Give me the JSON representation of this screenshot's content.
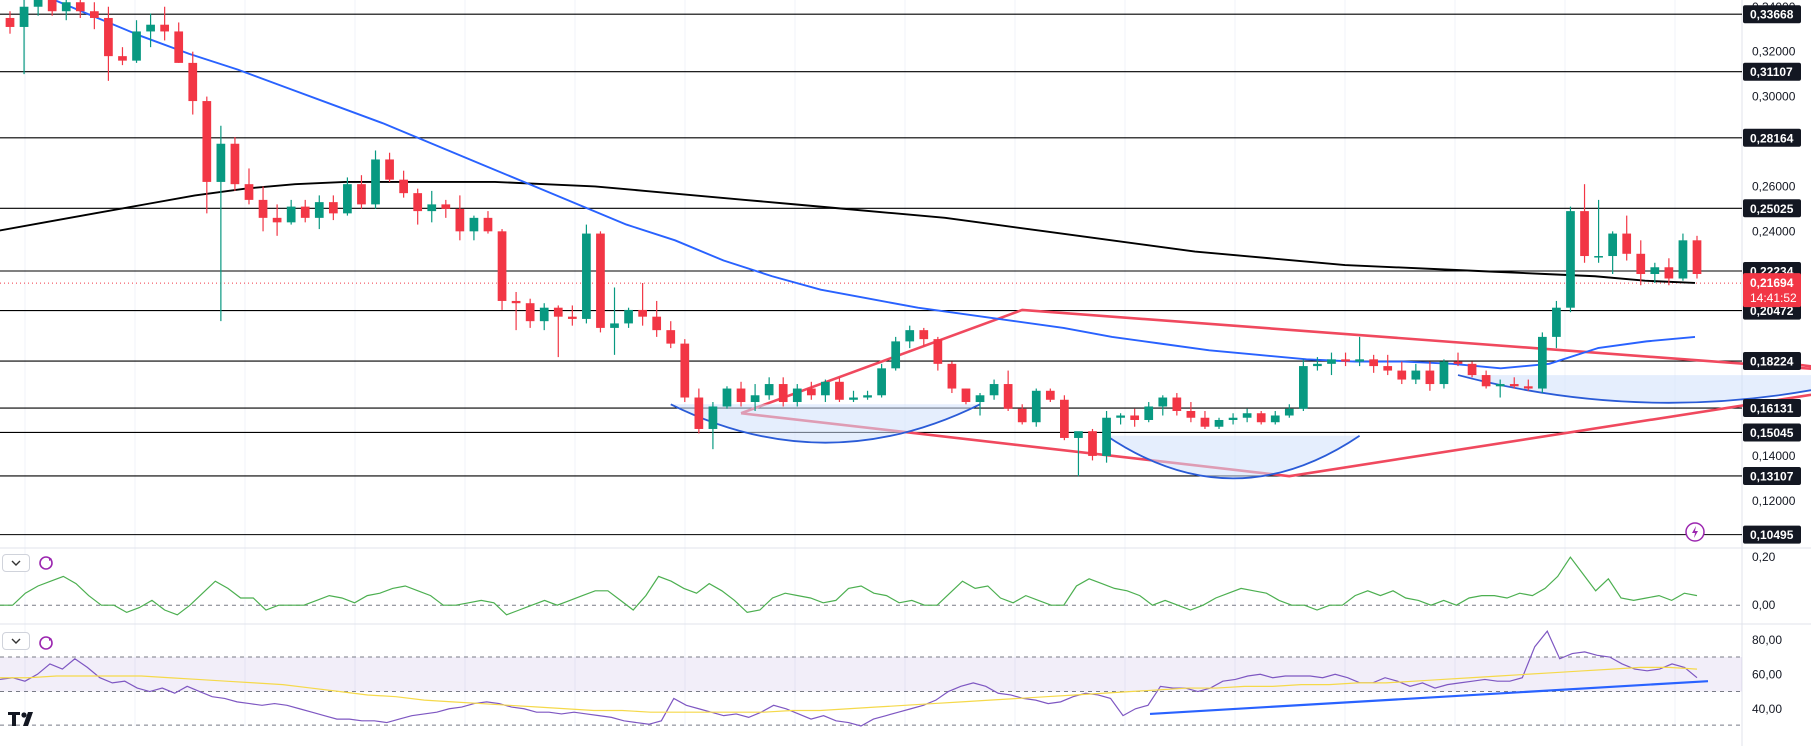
{
  "chart_data": {
    "type": "candlestick",
    "price_axis": {
      "tick_labels": [
        "0,34000",
        "0,32000",
        "0,30000",
        "0,26000",
        "0,24000",
        "0,14000",
        "0,12000"
      ],
      "ticks": [
        0.34,
        0.32,
        0.3,
        0.26,
        0.24,
        0.14,
        0.12
      ],
      "range": [
        0.099,
        0.343
      ]
    },
    "levels": [
      {
        "value": 0.33668,
        "label": "0,33668"
      },
      {
        "value": 0.31107,
        "label": "0,31107"
      },
      {
        "value": 0.28164,
        "label": "0,28164"
      },
      {
        "value": 0.25025,
        "label": "0,25025"
      },
      {
        "value": 0.22234,
        "label": "0,22234"
      },
      {
        "value": 0.20472,
        "label": "0,20472"
      },
      {
        "value": 0.18224,
        "label": "0,18224"
      },
      {
        "value": 0.16131,
        "label": "0,16131"
      },
      {
        "value": 0.15045,
        "label": "0,15045"
      },
      {
        "value": 0.13107,
        "label": "0,13107"
      },
      {
        "value": 0.10495,
        "label": "0,10495"
      }
    ],
    "current_price": {
      "value": 0.21694,
      "label": "0,21694",
      "countdown": "14:41:52"
    },
    "colors": {
      "up": "#089981",
      "down": "#f23645",
      "ma_long": "#000000",
      "ma_short": "#2962ff",
      "pattern": "#f0495e",
      "base": "#2a5bd7",
      "oscillator": "#4caf50",
      "rsi": "#7e57c2",
      "rsi_signal": "#f5d94a",
      "trendline": "#2962ff",
      "price_tag": "#f23645"
    },
    "candles": [
      [
        0.335,
        0.338,
        0.328,
        0.331
      ],
      [
        0.331,
        0.345,
        0.31,
        0.34
      ],
      [
        0.34,
        0.352,
        0.336,
        0.348
      ],
      [
        0.348,
        0.352,
        0.336,
        0.338
      ],
      [
        0.338,
        0.345,
        0.334,
        0.342
      ],
      [
        0.342,
        0.347,
        0.335,
        0.338
      ],
      [
        0.338,
        0.342,
        0.33,
        0.335
      ],
      [
        0.335,
        0.34,
        0.307,
        0.318
      ],
      [
        0.318,
        0.322,
        0.314,
        0.316
      ],
      [
        0.316,
        0.334,
        0.315,
        0.329
      ],
      [
        0.329,
        0.337,
        0.322,
        0.332
      ],
      [
        0.332,
        0.34,
        0.325,
        0.329
      ],
      [
        0.329,
        0.333,
        0.315,
        0.315
      ],
      [
        0.315,
        0.32,
        0.292,
        0.298
      ],
      [
        0.298,
        0.3,
        0.248,
        0.262
      ],
      [
        0.262,
        0.287,
        0.2,
        0.279
      ],
      [
        0.279,
        0.282,
        0.258,
        0.261
      ],
      [
        0.261,
        0.268,
        0.252,
        0.254
      ],
      [
        0.254,
        0.26,
        0.24,
        0.246
      ],
      [
        0.246,
        0.252,
        0.238,
        0.244
      ],
      [
        0.244,
        0.254,
        0.243,
        0.251
      ],
      [
        0.251,
        0.254,
        0.244,
        0.246
      ],
      [
        0.246,
        0.256,
        0.241,
        0.253
      ],
      [
        0.253,
        0.256,
        0.245,
        0.248
      ],
      [
        0.248,
        0.264,
        0.247,
        0.261
      ],
      [
        0.261,
        0.265,
        0.25,
        0.252
      ],
      [
        0.252,
        0.276,
        0.25,
        0.272
      ],
      [
        0.272,
        0.275,
        0.262,
        0.263
      ],
      [
        0.263,
        0.267,
        0.255,
        0.257
      ],
      [
        0.257,
        0.259,
        0.243,
        0.249
      ],
      [
        0.249,
        0.258,
        0.244,
        0.252
      ],
      [
        0.252,
        0.254,
        0.246,
        0.25
      ],
      [
        0.25,
        0.256,
        0.236,
        0.24
      ],
      [
        0.24,
        0.247,
        0.236,
        0.246
      ],
      [
        0.246,
        0.249,
        0.239,
        0.24
      ],
      [
        0.24,
        0.241,
        0.205,
        0.209
      ],
      [
        0.209,
        0.213,
        0.196,
        0.208
      ],
      [
        0.208,
        0.21,
        0.197,
        0.2
      ],
      [
        0.2,
        0.208,
        0.196,
        0.206
      ],
      [
        0.206,
        0.207,
        0.184,
        0.202
      ],
      [
        0.202,
        0.207,
        0.198,
        0.201
      ],
      [
        0.201,
        0.243,
        0.199,
        0.239
      ],
      [
        0.239,
        0.24,
        0.195,
        0.197
      ],
      [
        0.197,
        0.215,
        0.185,
        0.199
      ],
      [
        0.199,
        0.206,
        0.197,
        0.205
      ],
      [
        0.205,
        0.217,
        0.198,
        0.202
      ],
      [
        0.202,
        0.209,
        0.193,
        0.196
      ],
      [
        0.196,
        0.2,
        0.188,
        0.19
      ],
      [
        0.19,
        0.192,
        0.164,
        0.166
      ],
      [
        0.166,
        0.17,
        0.15,
        0.152
      ],
      [
        0.152,
        0.164,
        0.143,
        0.162
      ],
      [
        0.162,
        0.171,
        0.161,
        0.17
      ],
      [
        0.17,
        0.173,
        0.162,
        0.164
      ],
      [
        0.164,
        0.172,
        0.16,
        0.167
      ],
      [
        0.167,
        0.175,
        0.165,
        0.172
      ],
      [
        0.172,
        0.175,
        0.162,
        0.164
      ],
      [
        0.164,
        0.172,
        0.162,
        0.17
      ],
      [
        0.17,
        0.173,
        0.165,
        0.167
      ],
      [
        0.167,
        0.174,
        0.164,
        0.173
      ],
      [
        0.173,
        0.175,
        0.164,
        0.165
      ],
      [
        0.165,
        0.169,
        0.164,
        0.166
      ],
      [
        0.166,
        0.169,
        0.165,
        0.167
      ],
      [
        0.167,
        0.181,
        0.166,
        0.179
      ],
      [
        0.179,
        0.193,
        0.178,
        0.191
      ],
      [
        0.191,
        0.198,
        0.188,
        0.196
      ],
      [
        0.196,
        0.197,
        0.189,
        0.192
      ],
      [
        0.192,
        0.193,
        0.178,
        0.181
      ],
      [
        0.181,
        0.182,
        0.168,
        0.17
      ],
      [
        0.17,
        0.17,
        0.163,
        0.164
      ],
      [
        0.164,
        0.168,
        0.158,
        0.167
      ],
      [
        0.167,
        0.174,
        0.165,
        0.172
      ],
      [
        0.172,
        0.178,
        0.16,
        0.161
      ],
      [
        0.161,
        0.163,
        0.154,
        0.155
      ],
      [
        0.155,
        0.17,
        0.153,
        0.169
      ],
      [
        0.169,
        0.17,
        0.164,
        0.165
      ],
      [
        0.165,
        0.167,
        0.147,
        0.148
      ],
      [
        0.148,
        0.149,
        0.131,
        0.151
      ],
      [
        0.151,
        0.152,
        0.138,
        0.14
      ],
      [
        0.14,
        0.16,
        0.137,
        0.157
      ],
      [
        0.157,
        0.159,
        0.154,
        0.158
      ],
      [
        0.158,
        0.161,
        0.153,
        0.156
      ],
      [
        0.156,
        0.164,
        0.155,
        0.162
      ],
      [
        0.162,
        0.167,
        0.158,
        0.166
      ],
      [
        0.166,
        0.168,
        0.158,
        0.16
      ],
      [
        0.16,
        0.164,
        0.155,
        0.157
      ],
      [
        0.157,
        0.16,
        0.152,
        0.153
      ],
      [
        0.153,
        0.157,
        0.152,
        0.156
      ],
      [
        0.156,
        0.159,
        0.154,
        0.157
      ],
      [
        0.157,
        0.161,
        0.155,
        0.159
      ],
      [
        0.159,
        0.16,
        0.154,
        0.155
      ],
      [
        0.155,
        0.16,
        0.154,
        0.158
      ],
      [
        0.158,
        0.163,
        0.157,
        0.161
      ],
      [
        0.161,
        0.183,
        0.16,
        0.18
      ],
      [
        0.18,
        0.184,
        0.178,
        0.181
      ],
      [
        0.181,
        0.186,
        0.176,
        0.183
      ],
      [
        0.183,
        0.186,
        0.18,
        0.182
      ],
      [
        0.182,
        0.193,
        0.18,
        0.183
      ],
      [
        0.183,
        0.185,
        0.177,
        0.18
      ],
      [
        0.18,
        0.185,
        0.176,
        0.178
      ],
      [
        0.178,
        0.182,
        0.172,
        0.174
      ],
      [
        0.174,
        0.181,
        0.172,
        0.178
      ],
      [
        0.178,
        0.182,
        0.169,
        0.172
      ],
      [
        0.172,
        0.183,
        0.17,
        0.182
      ],
      [
        0.182,
        0.186,
        0.18,
        0.181
      ],
      [
        0.181,
        0.182,
        0.175,
        0.176
      ],
      [
        0.176,
        0.178,
        0.17,
        0.171
      ],
      [
        0.171,
        0.174,
        0.166,
        0.172
      ],
      [
        0.172,
        0.175,
        0.17,
        0.171
      ],
      [
        0.171,
        0.174,
        0.169,
        0.17
      ],
      [
        0.17,
        0.195,
        0.168,
        0.193
      ],
      [
        0.193,
        0.209,
        0.188,
        0.206
      ],
      [
        0.206,
        0.251,
        0.204,
        0.249
      ],
      [
        0.249,
        0.261,
        0.226,
        0.229
      ],
      [
        0.229,
        0.254,
        0.226,
        0.229
      ],
      [
        0.229,
        0.24,
        0.221,
        0.239
      ],
      [
        0.239,
        0.247,
        0.227,
        0.23
      ],
      [
        0.23,
        0.236,
        0.216,
        0.221
      ],
      [
        0.221,
        0.226,
        0.217,
        0.224
      ],
      [
        0.224,
        0.228,
        0.216,
        0.219
      ],
      [
        0.219,
        0.239,
        0.218,
        0.236
      ],
      [
        0.236,
        0.238,
        0.219,
        0.221
      ]
    ],
    "ma_long": [
      0.24,
      0.244,
      0.248,
      0.252,
      0.256,
      0.259,
      0.261,
      0.262,
      0.262,
      0.262,
      0.262,
      0.261,
      0.26,
      0.258,
      0.256,
      0.254,
      0.252,
      0.25,
      0.248,
      0.246,
      0.243,
      0.24,
      0.237,
      0.234,
      0.231,
      0.229,
      0.227,
      0.225,
      0.224,
      0.223,
      0.222,
      0.221,
      0.22,
      0.218,
      0.217
    ],
    "ma_short": [
      0.35,
      0.345,
      0.336,
      0.327,
      0.319,
      0.312,
      0.304,
      0.296,
      0.288,
      0.279,
      0.27,
      0.261,
      0.252,
      0.243,
      0.236,
      0.227,
      0.22,
      0.214,
      0.21,
      0.206,
      0.203,
      0.2,
      0.197,
      0.193,
      0.19,
      0.187,
      0.185,
      0.183,
      0.182,
      0.182,
      0.181,
      0.179,
      0.181,
      0.188,
      0.191,
      0.193
    ],
    "oscillator_panel": {
      "tick_labels": [
        "0,20",
        "0,00"
      ],
      "ticks": [
        0.2,
        0.0
      ],
      "range": [
        -0.07,
        0.23
      ],
      "values": [
        0.0,
        0.0,
        0.05,
        0.08,
        0.1,
        0.12,
        0.09,
        0.04,
        0.0,
        0.0,
        -0.03,
        -0.01,
        0.02,
        -0.02,
        -0.04,
        0.0,
        0.05,
        0.1,
        0.07,
        0.03,
        0.03,
        -0.02,
        0.0,
        0.0,
        0.0,
        0.02,
        0.04,
        0.03,
        0.01,
        0.04,
        0.05,
        0.07,
        0.08,
        0.06,
        0.04,
        0.0,
        0.0,
        0.01,
        0.02,
        0.01,
        -0.04,
        -0.02,
        0.0,
        0.02,
        0.0,
        0.02,
        0.04,
        0.06,
        0.06,
        0.02,
        -0.02,
        0.04,
        0.12,
        0.1,
        0.07,
        0.05,
        0.09,
        0.06,
        0.02,
        -0.03,
        -0.02,
        0.03,
        0.05,
        0.04,
        0.03,
        0.01,
        0.02,
        0.07,
        0.08,
        0.05,
        0.04,
        0.01,
        0.02,
        0.0,
        0.0,
        0.05,
        0.1,
        0.07,
        0.08,
        0.03,
        0.01,
        0.04,
        0.02,
        0.0,
        0.0,
        0.08,
        0.11,
        0.09,
        0.07,
        0.06,
        0.04,
        0.0,
        0.02,
        0.0,
        -0.02,
        0.0,
        0.03,
        0.05,
        0.07,
        0.06,
        0.05,
        0.02,
        0.0,
        0.0,
        -0.02,
        0.0,
        0.0,
        0.04,
        0.06,
        0.04,
        0.06,
        0.03,
        0.02,
        0.0,
        0.02,
        0.0,
        0.03,
        0.04,
        0.04,
        0.03,
        0.05,
        0.04,
        0.07,
        0.12,
        0.2,
        0.13,
        0.06,
        0.11,
        0.03,
        0.02,
        0.03,
        0.04,
        0.02,
        0.05,
        0.04
      ]
    },
    "rsi_panel": {
      "tick_labels": [
        "80,00",
        "60,00",
        "40,00"
      ],
      "ticks": [
        80,
        60,
        40
      ],
      "range": [
        30,
        88
      ],
      "band": [
        50,
        70
      ],
      "values": [
        57,
        58,
        56,
        60,
        66,
        63,
        69,
        64,
        58,
        55,
        56,
        52,
        50,
        52,
        49,
        53,
        50,
        47,
        46,
        44,
        43,
        42,
        43,
        42,
        40,
        38,
        36,
        34,
        34,
        33,
        33,
        32,
        34,
        36,
        37,
        38,
        40,
        41,
        43,
        44,
        43,
        41,
        40,
        38,
        38,
        37,
        38,
        37,
        36,
        35,
        33,
        32,
        31,
        33,
        46,
        42,
        40,
        38,
        36,
        37,
        35,
        38,
        42,
        40,
        37,
        34,
        36,
        33,
        32,
        30,
        34,
        36,
        38,
        40,
        42,
        45,
        50,
        53,
        55,
        53,
        49,
        48,
        46,
        45,
        43,
        44,
        47,
        49,
        48,
        46,
        36,
        40,
        42,
        53,
        52,
        52,
        50,
        52,
        56,
        57,
        59,
        60,
        58,
        59,
        59,
        59,
        58,
        60,
        58,
        55,
        55,
        58,
        56,
        53,
        55,
        52,
        54,
        55,
        56,
        57,
        56,
        56,
        58,
        76,
        85,
        69,
        72,
        73,
        71,
        70,
        66,
        63,
        62,
        63,
        66,
        64,
        58
      ],
      "signal": [
        58,
        58,
        59,
        59,
        59,
        59,
        58,
        57,
        56,
        55,
        54,
        52,
        50,
        48,
        47,
        45,
        44,
        43,
        42,
        41,
        40,
        39,
        39,
        38,
        38,
        38,
        38,
        38,
        39,
        39,
        40,
        41,
        42,
        43,
        44,
        45,
        46,
        47,
        48,
        49,
        50,
        51,
        52,
        52,
        53,
        53,
        54,
        54,
        55,
        55,
        56,
        57,
        58,
        59,
        60,
        61,
        62,
        63,
        64,
        64,
        63
      ]
    },
    "patterns": {
      "triangle": [
        [
          0,
          0.159
        ],
        [
          1,
          0.199
        ],
        [
          2,
          0.131
        ],
        [
          3,
          0.186
        ]
      ],
      "arc_bases": 3,
      "rsi_trendline": [
        0.0,
        1.0
      ]
    }
  }
}
